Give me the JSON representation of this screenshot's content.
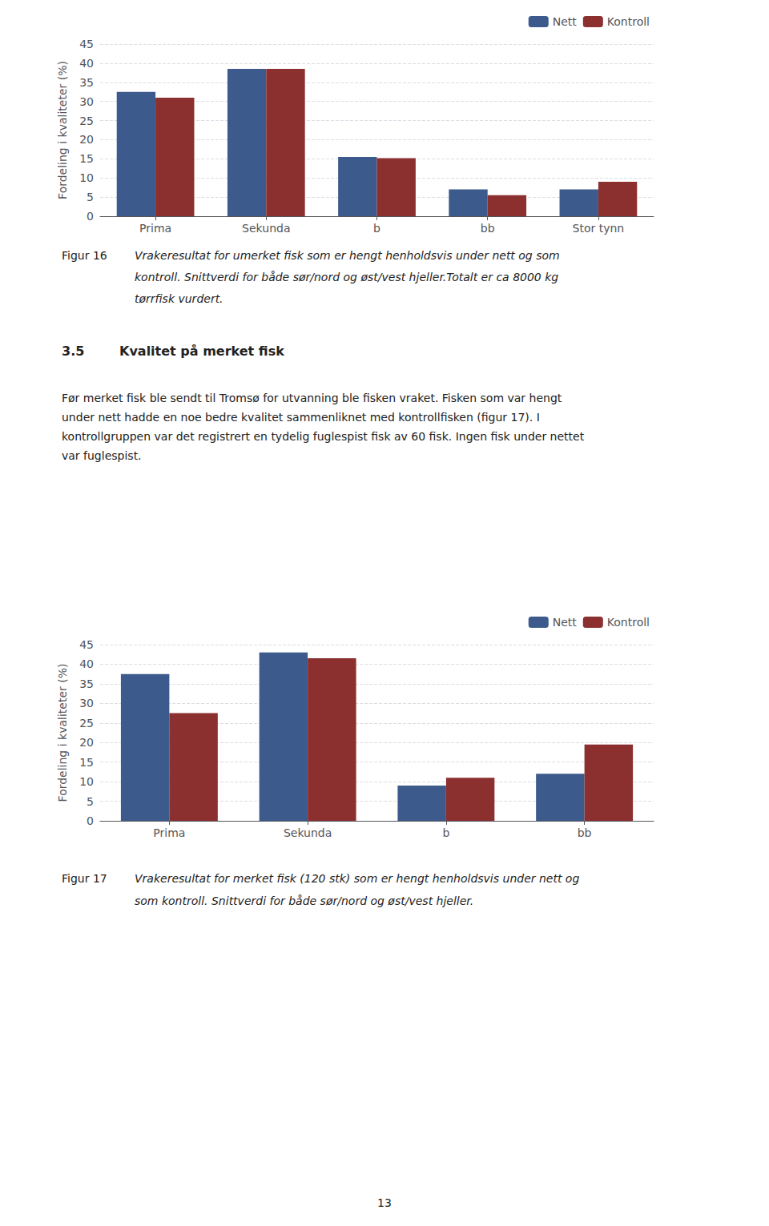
{
  "chart_data": [
    {
      "type": "bar",
      "categories": [
        "Prima",
        "Sekunda",
        "b",
        "bb",
        "Stor tynn"
      ],
      "series": [
        {
          "name": "Nett",
          "color": "#3C5A8C",
          "values": [
            32.5,
            38.5,
            15.5,
            7.0,
            7.0
          ]
        },
        {
          "name": "Kontroll",
          "color": "#8B2F2F",
          "values": [
            31.0,
            38.5,
            15.2,
            5.5,
            9.0
          ]
        }
      ],
      "ylabel": "Fordeling i kvaliteter (%)",
      "ylim": [
        0,
        45
      ],
      "yticks": [
        0,
        5,
        10,
        15,
        20,
        25,
        30,
        35,
        40,
        45
      ],
      "grid": true,
      "legend": "upper right",
      "annotations": [
        "Figur 16",
        "Vrakeresultat for umerket fisk som er hengt henholdsvis under nett og som",
        "kontroll. Snittverdi for både sør/nord og øst/vest hjeller.Totalt er ca 8000 kg",
        "tørrfisk vurdert.",
        "3.5",
        "Kvalitet på merket fisk",
        "Før merket fisk ble sendt til Tromsø for utvanning ble fisken vraket. Fisken som var hengt",
        "under nett hadde en noe bedre kvalitet sammenliknet med kontrollfisken (figur 17). I",
        "kontrollgruppen var det registrert en tydelig fuglespist fisk av 60 fisk. Ingen fisk under nettet",
        "var fuglespist."
      ]
    },
    {
      "type": "bar",
      "categories": [
        "Prima",
        "Sekunda",
        "b",
        "bb"
      ],
      "series": [
        {
          "name": "Nett",
          "color": "#3C5A8C",
          "values": [
            37.5,
            43.0,
            9.0,
            12.0
          ]
        },
        {
          "name": "Kontroll",
          "color": "#8B2F2F",
          "values": [
            27.5,
            41.5,
            11.0,
            19.5
          ]
        }
      ],
      "ylabel": "Fordeling i kvaliteter (%)",
      "ylim": [
        0,
        45
      ],
      "yticks": [
        0,
        5,
        10,
        15,
        20,
        25,
        30,
        35,
        40,
        45
      ],
      "grid": true,
      "legend": "upper right",
      "annotations": [
        "Figur 17",
        "Vrakeresultat for merket fisk (120 stk) som er hengt henholdsvis under nett og",
        "som kontroll. Snittverdi for både sør/nord og øst/vest hjeller.",
        "13"
      ]
    }
  ]
}
